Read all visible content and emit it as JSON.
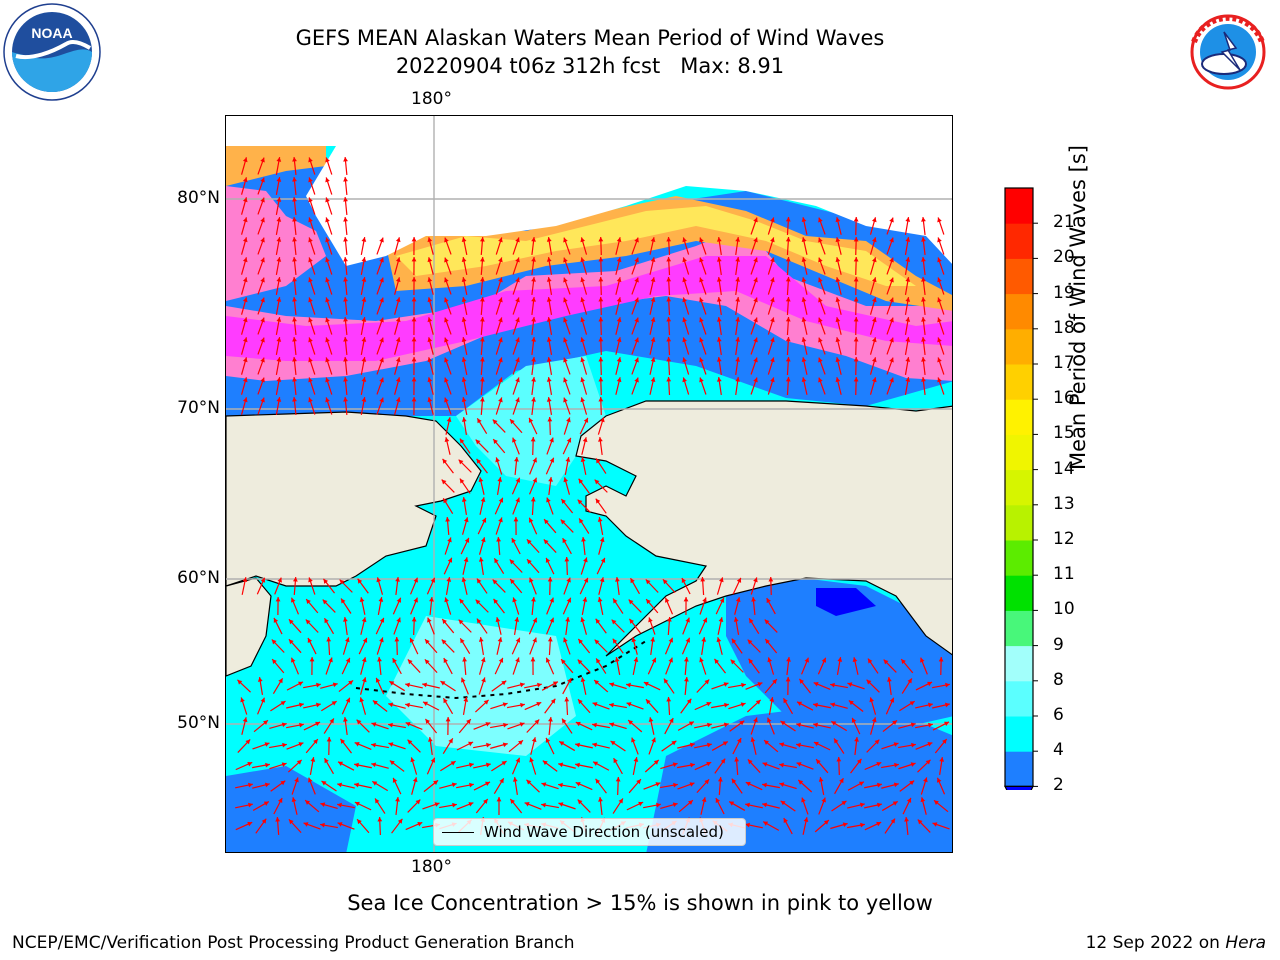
{
  "title": {
    "line1": "GEFS MEAN Alaskan Waters Mean Period of Wind Waves",
    "line2": "20220904 t06z 312h fcst   Max: 8.91"
  },
  "logos": {
    "left": {
      "name": "noaa-logo",
      "text": "NOAA"
    },
    "right": {
      "name": "nws-logo",
      "text": "NATIONAL WEATHER SERVICE"
    }
  },
  "map": {
    "lon_label_top": "180°",
    "lon_label_bottom": "180°",
    "lat_labels": [
      "80°N",
      "70°N",
      "60°N",
      "50°N"
    ],
    "colors": {
      "land": "#eeecdd",
      "ice_pink": "#ff7fd0",
      "ice_magenta": "#ff3cff",
      "ice_orange": "#ffb24a",
      "ice_yellow": "#ffe75a",
      "wave_blue": "#1e7fff",
      "wave_cyan": "#00ffff",
      "wave_lightcyan": "#7dffff",
      "arrow": "#ff0000",
      "coast": "#000000",
      "grid": "#b0b0b0"
    },
    "legend_text": "Wind Wave Direction (unscaled)"
  },
  "colorbar": {
    "title": "Mean Period of Wind Waves [s]",
    "ticks": [
      "2",
      "4",
      "6",
      "8",
      "9",
      "10",
      "11",
      "12",
      "13",
      "14",
      "15",
      "16",
      "17",
      "18",
      "19",
      "20",
      "21"
    ],
    "colors": [
      "#0000ff",
      "#1e7fff",
      "#00ffff",
      "#5bffff",
      "#a2fffb",
      "#48f77a",
      "#00e100",
      "#5cec00",
      "#b8f200",
      "#d6f500",
      "#f0f500",
      "#fff200",
      "#ffd000",
      "#ffae00",
      "#ff8a00",
      "#ff5a00",
      "#ff2800",
      "#ff0000"
    ]
  },
  "footnote": "Sea Ice Concentration > 15% is shown in pink to yellow",
  "footer": {
    "left": "NCEP/EMC/Verification Post Processing Product Generation Branch",
    "right_prefix": "12 Sep 2022 on ",
    "right_machine": "Hera"
  }
}
